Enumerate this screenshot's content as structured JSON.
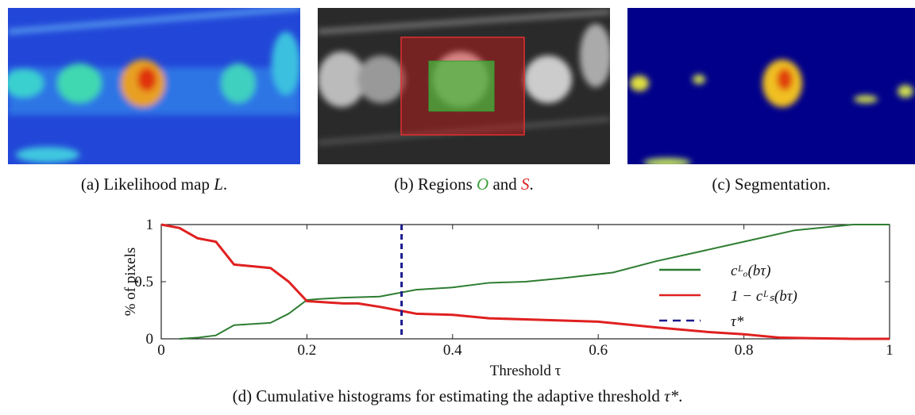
{
  "captions": {
    "a": [
      "(a) Likelihood map ",
      "L",
      "."
    ],
    "b": [
      "(b) Regions ",
      "O",
      " and ",
      "S",
      "."
    ],
    "c": [
      "(c) Segmentation."
    ],
    "d": [
      "(d) Cumulative histograms for estimating the adaptive threshold ",
      "τ*",
      "."
    ]
  },
  "chart_data": {
    "type": "line",
    "xlabel": "Threshold τ",
    "ylabel": "% of pixels",
    "xlim": [
      0,
      1
    ],
    "ylim": [
      0,
      1
    ],
    "xticks": [
      0,
      0.2,
      0.4,
      0.6,
      0.8,
      1
    ],
    "yticks": [
      0,
      0.5,
      1
    ],
    "series": [
      {
        "name": "cᴸₒ(bτ)",
        "color": "#2e7d32",
        "x": [
          0.025,
          0.05,
          0.075,
          0.1,
          0.15,
          0.175,
          0.2,
          0.22,
          0.25,
          0.3,
          0.35,
          0.4,
          0.45,
          0.5,
          0.55,
          0.62,
          0.68,
          0.73,
          0.8,
          0.87,
          0.95,
          1
        ],
        "values": [
          0,
          0.01,
          0.03,
          0.12,
          0.14,
          0.22,
          0.34,
          0.35,
          0.36,
          0.37,
          0.43,
          0.45,
          0.49,
          0.5,
          0.53,
          0.58,
          0.68,
          0.75,
          0.85,
          0.95,
          1,
          1
        ]
      },
      {
        "name": "1 − cᴸₛ(bτ)",
        "color": "#e02020",
        "x": [
          0,
          0.025,
          0.05,
          0.075,
          0.1,
          0.15,
          0.175,
          0.2,
          0.25,
          0.27,
          0.3,
          0.35,
          0.4,
          0.45,
          0.5,
          0.6,
          0.68,
          0.75,
          0.8,
          0.85,
          0.95,
          1
        ],
        "values": [
          1,
          0.97,
          0.88,
          0.85,
          0.65,
          0.62,
          0.5,
          0.33,
          0.31,
          0.31,
          0.28,
          0.22,
          0.21,
          0.18,
          0.17,
          0.15,
          0.1,
          0.06,
          0.04,
          0.01,
          0,
          0
        ]
      }
    ],
    "threshold": {
      "name": "τ*",
      "x": 0.33,
      "color": "#1a1a8c"
    }
  }
}
